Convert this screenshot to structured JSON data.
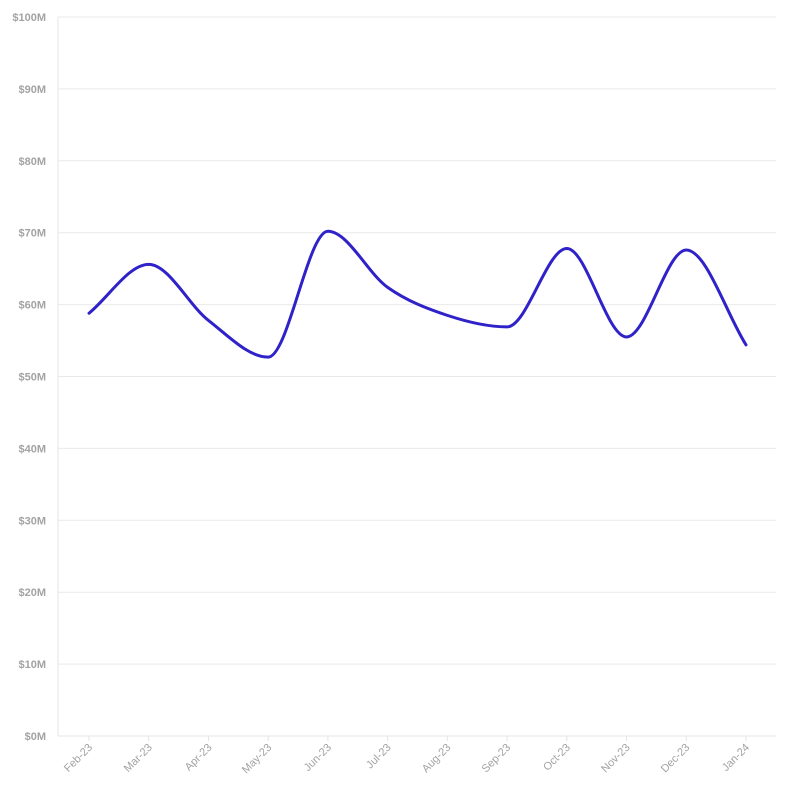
{
  "chart_data": {
    "type": "line",
    "title": "",
    "xlabel": "",
    "ylabel": "",
    "categories": [
      "Feb-23",
      "Mar-23",
      "Apr-23",
      "May-23",
      "Jun-23",
      "Jul-23",
      "Aug-23",
      "Sep-23",
      "Oct-23",
      "Nov-23",
      "Dec-23",
      "Jan-24"
    ],
    "series": [
      {
        "values": [
          58.8,
          65.6,
          57.8,
          52.7,
          70.2,
          62.4,
          58.5,
          56.9,
          67.8,
          55.5,
          67.6,
          54.4
        ]
      }
    ],
    "ylim": [
      0,
      100
    ],
    "y_ticks": [
      "$0M",
      "$10M",
      "$20M",
      "$30M",
      "$40M",
      "$50M",
      "$60M",
      "$70M",
      "$80M",
      "$90M",
      "$100M"
    ],
    "grid": true,
    "legend": "none",
    "line_color": "#2f22c8"
  }
}
